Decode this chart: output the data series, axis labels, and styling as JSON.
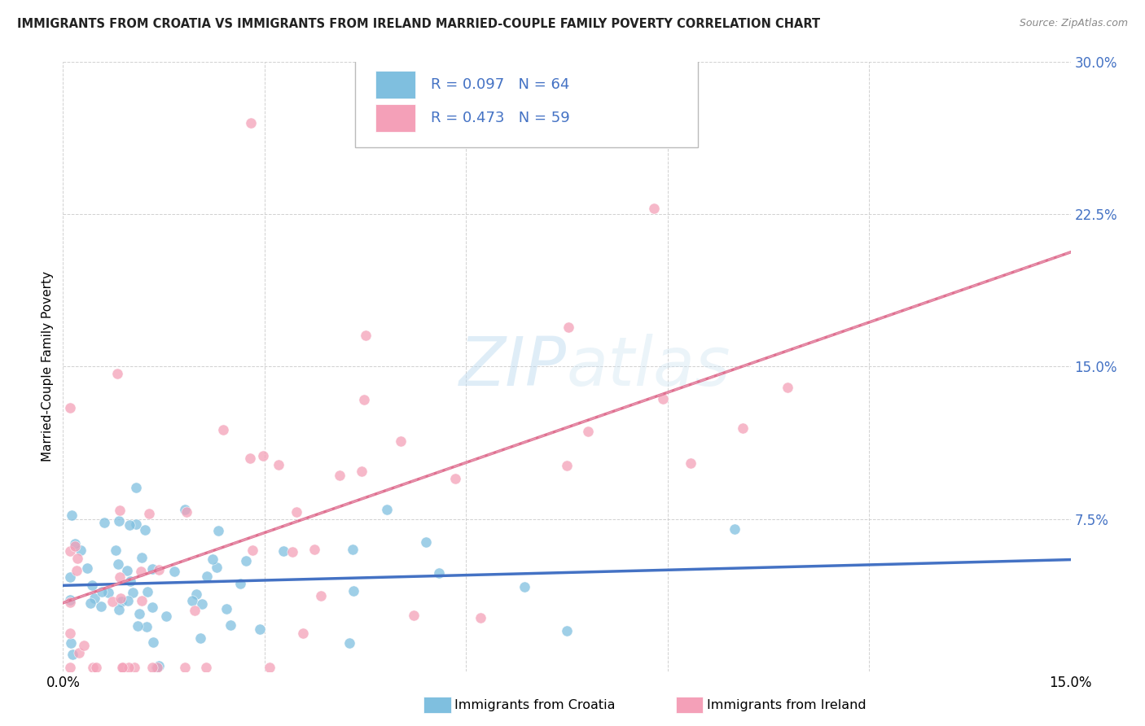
{
  "title": "IMMIGRANTS FROM CROATIA VS IMMIGRANTS FROM IRELAND MARRIED-COUPLE FAMILY POVERTY CORRELATION CHART",
  "source": "Source: ZipAtlas.com",
  "ylabel": "Married-Couple Family Poverty",
  "xlabel_croatia": "Immigrants from Croatia",
  "xlabel_ireland": "Immigrants from Ireland",
  "xlim": [
    0.0,
    0.15
  ],
  "ylim": [
    0.0,
    0.3
  ],
  "ytick_vals": [
    0.0,
    0.075,
    0.15,
    0.225,
    0.3
  ],
  "ytick_labels": [
    "",
    "7.5%",
    "15.0%",
    "22.5%",
    "30.0%"
  ],
  "xtick_vals": [
    0.0,
    0.03,
    0.06,
    0.09,
    0.12,
    0.15
  ],
  "xtick_labels": [
    "0.0%",
    "",
    "",
    "",
    "",
    "15.0%"
  ],
  "croatia_R": 0.097,
  "croatia_N": 64,
  "ireland_R": 0.473,
  "ireland_N": 59,
  "croatia_scatter_color": "#7fbfdf",
  "ireland_scatter_color": "#f4a0b8",
  "croatia_line_color": "#4472c4",
  "ireland_line_color": "#e07090",
  "ireland_dash_color": "#e8a0b8",
  "grid_color": "#cccccc",
  "title_color": "#222222",
  "source_color": "#888888",
  "tick_right_color": "#4472c4",
  "legend_text_color": "#4472c4",
  "watermark_color": "#cce5f5"
}
